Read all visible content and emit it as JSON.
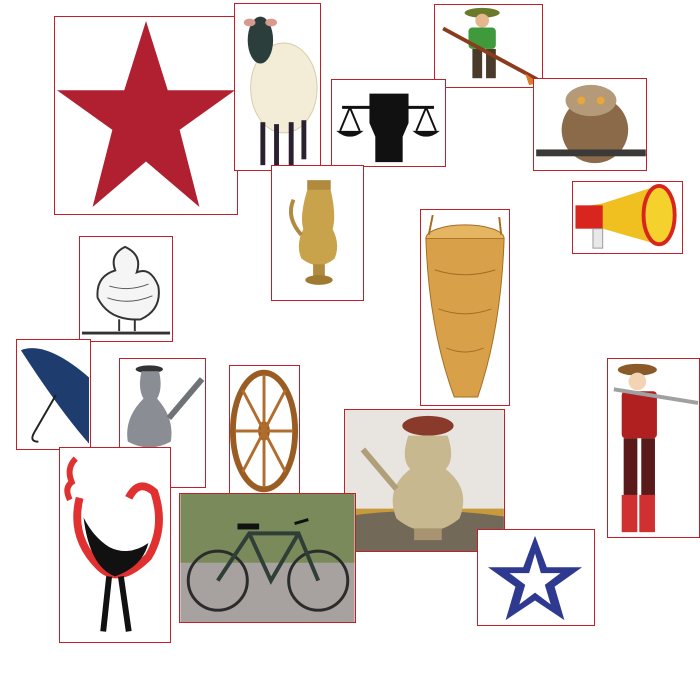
{
  "tiles": [
    {
      "icon": "red-star-icon"
    },
    {
      "icon": "sheep-icon"
    },
    {
      "icon": "farmer-plough-icon"
    },
    {
      "icon": "fist-scales-icon"
    },
    {
      "icon": "owl-icon"
    },
    {
      "icon": "megaphone-icon"
    },
    {
      "icon": "brass-jug-icon"
    },
    {
      "icon": "hen-icon"
    },
    {
      "icon": "basket-icon"
    },
    {
      "icon": "umbrella-icon"
    },
    {
      "icon": "kettle-icon"
    },
    {
      "icon": "wheel-icon"
    },
    {
      "icon": "water-pot-icon"
    },
    {
      "icon": "farmer-shovel-icon"
    },
    {
      "icon": "rooster-icon"
    },
    {
      "icon": "bicycle-icon"
    },
    {
      "icon": "blue-star-icon"
    }
  ],
  "colors": {
    "border": "#c0202a",
    "star_red": "#b02031",
    "star_blue": "#2e3a8f",
    "brass": "#b08a3e",
    "basket": "#d9a04a"
  }
}
